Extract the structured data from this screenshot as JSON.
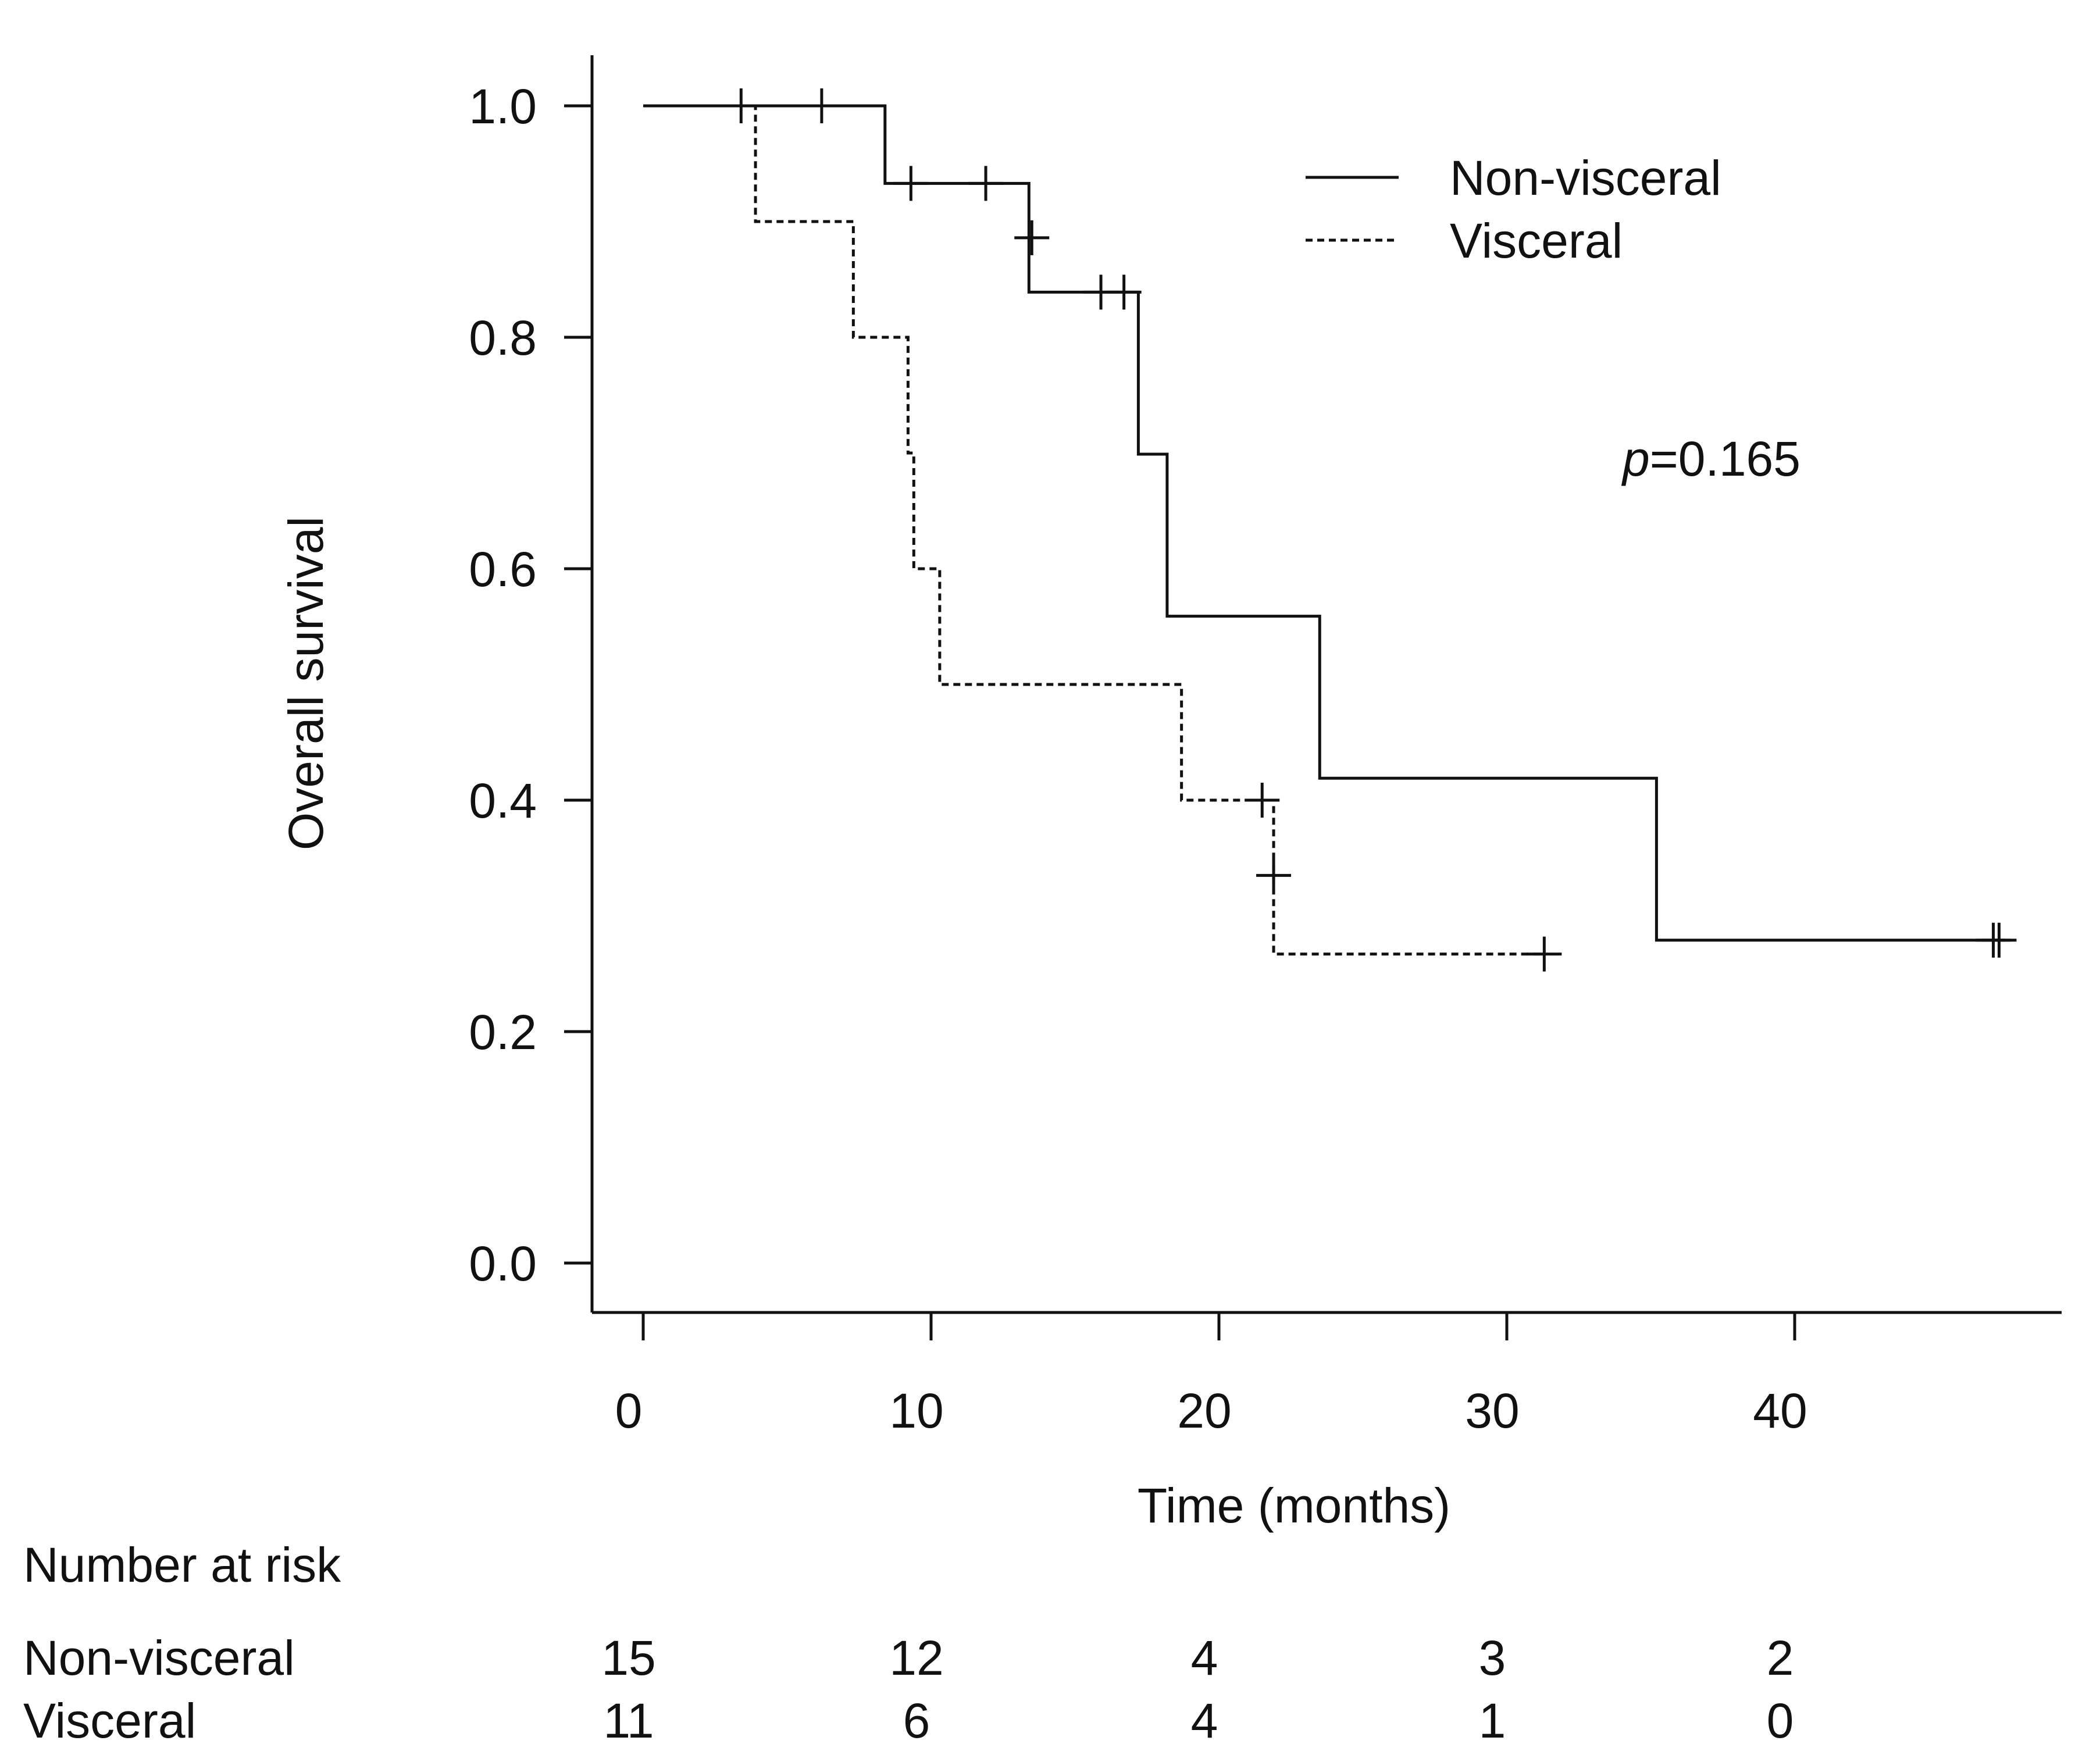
{
  "chart_data": {
    "type": "line",
    "subtype": "kaplan-meier",
    "title": "",
    "xlabel": "Time (months)",
    "ylabel": "Overall survival",
    "xlim": [
      0,
      49
    ],
    "ylim": [
      0,
      1.04
    ],
    "x_ticks": [
      0,
      10,
      20,
      30,
      40
    ],
    "x_tick_labels": [
      "0",
      "10",
      "20",
      "30",
      "40"
    ],
    "y_ticks": [
      0.0,
      0.2,
      0.4,
      0.6,
      0.8,
      1.0
    ],
    "y_tick_labels": [
      "0.0",
      "0.2",
      "0.4",
      "0.6",
      "0.8",
      "1.0"
    ],
    "grid": false,
    "legend_position": "top-right",
    "annotation": {
      "prefix": "p",
      "value": "=0.165"
    },
    "series": [
      {
        "name": "Non-visceral",
        "line_style": "solid",
        "steps": [
          [
            0,
            1.0
          ],
          [
            8.4,
            0.933
          ],
          [
            13.4,
            0.839
          ],
          [
            17.2,
            0.699
          ],
          [
            18.2,
            0.559
          ],
          [
            23.5,
            0.419
          ],
          [
            35.2,
            0.279
          ],
          [
            47.3,
            0.279
          ]
        ],
        "censored": [
          [
            3.4,
            1.0
          ],
          [
            6.2,
            1.0
          ],
          [
            9.3,
            0.933
          ],
          [
            11.9,
            0.933
          ],
          [
            13.5,
            0.886
          ],
          [
            15.9,
            0.839
          ],
          [
            16.7,
            0.839
          ],
          [
            46.9,
            0.279
          ],
          [
            47.1,
            0.279
          ]
        ]
      },
      {
        "name": "Visceral",
        "line_style": "dashed",
        "steps": [
          [
            3.4,
            1.0
          ],
          [
            3.9,
            0.9
          ],
          [
            7.3,
            0.8
          ],
          [
            9.2,
            0.7
          ],
          [
            9.4,
            0.6
          ],
          [
            10.3,
            0.5
          ],
          [
            18.7,
            0.4
          ],
          [
            21.9,
            0.267
          ],
          [
            31.3,
            0.267
          ]
        ],
        "censored": [
          [
            21.5,
            0.4
          ],
          [
            21.9,
            0.335
          ],
          [
            31.3,
            0.267
          ]
        ]
      }
    ],
    "risk_table": {
      "title": "Number at risk",
      "times": [
        0,
        10,
        20,
        30,
        40
      ],
      "rows": [
        {
          "name": "Non-visceral",
          "values": [
            "15",
            "12",
            "4",
            "3",
            "2"
          ]
        },
        {
          "name": "Visceral",
          "values": [
            "11",
            "6",
            "4",
            "1",
            "0"
          ]
        }
      ]
    }
  }
}
